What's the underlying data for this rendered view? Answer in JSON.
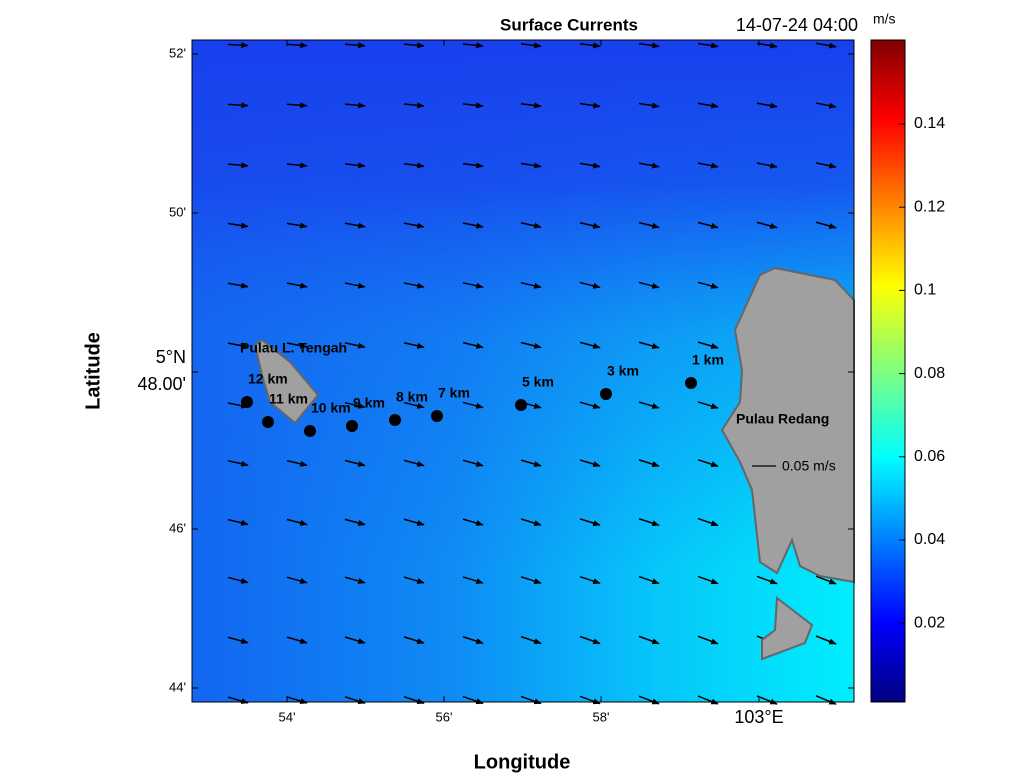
{
  "header": {
    "title": "Surface Currents",
    "timestamp": "14-07-24 04:00"
  },
  "axes": {
    "x_label": "Longitude",
    "y_label": "Latitude",
    "x_ticks": [
      "54'",
      "56'",
      "58'",
      "103°E"
    ],
    "y_ticks": [
      [
        "52'"
      ],
      [
        "50'"
      ],
      [
        "5°N",
        "48.00'"
      ],
      [
        "46'"
      ],
      [
        "44'"
      ]
    ]
  },
  "colorbar": {
    "unit": "m/s",
    "ticks": [
      "0.14",
      "0.12",
      "0.1",
      "0.08",
      "0.06",
      "0.04",
      "0.02"
    ]
  },
  "places": [
    "Pulau L. Tengah",
    "Pulau Redang"
  ],
  "stations": [
    "12 km",
    "11 km",
    "10 km",
    "9 km",
    "8 km",
    "7 km",
    "5 km",
    "3 km",
    "1 km"
  ],
  "scale_label": "0.05 m/s"
}
